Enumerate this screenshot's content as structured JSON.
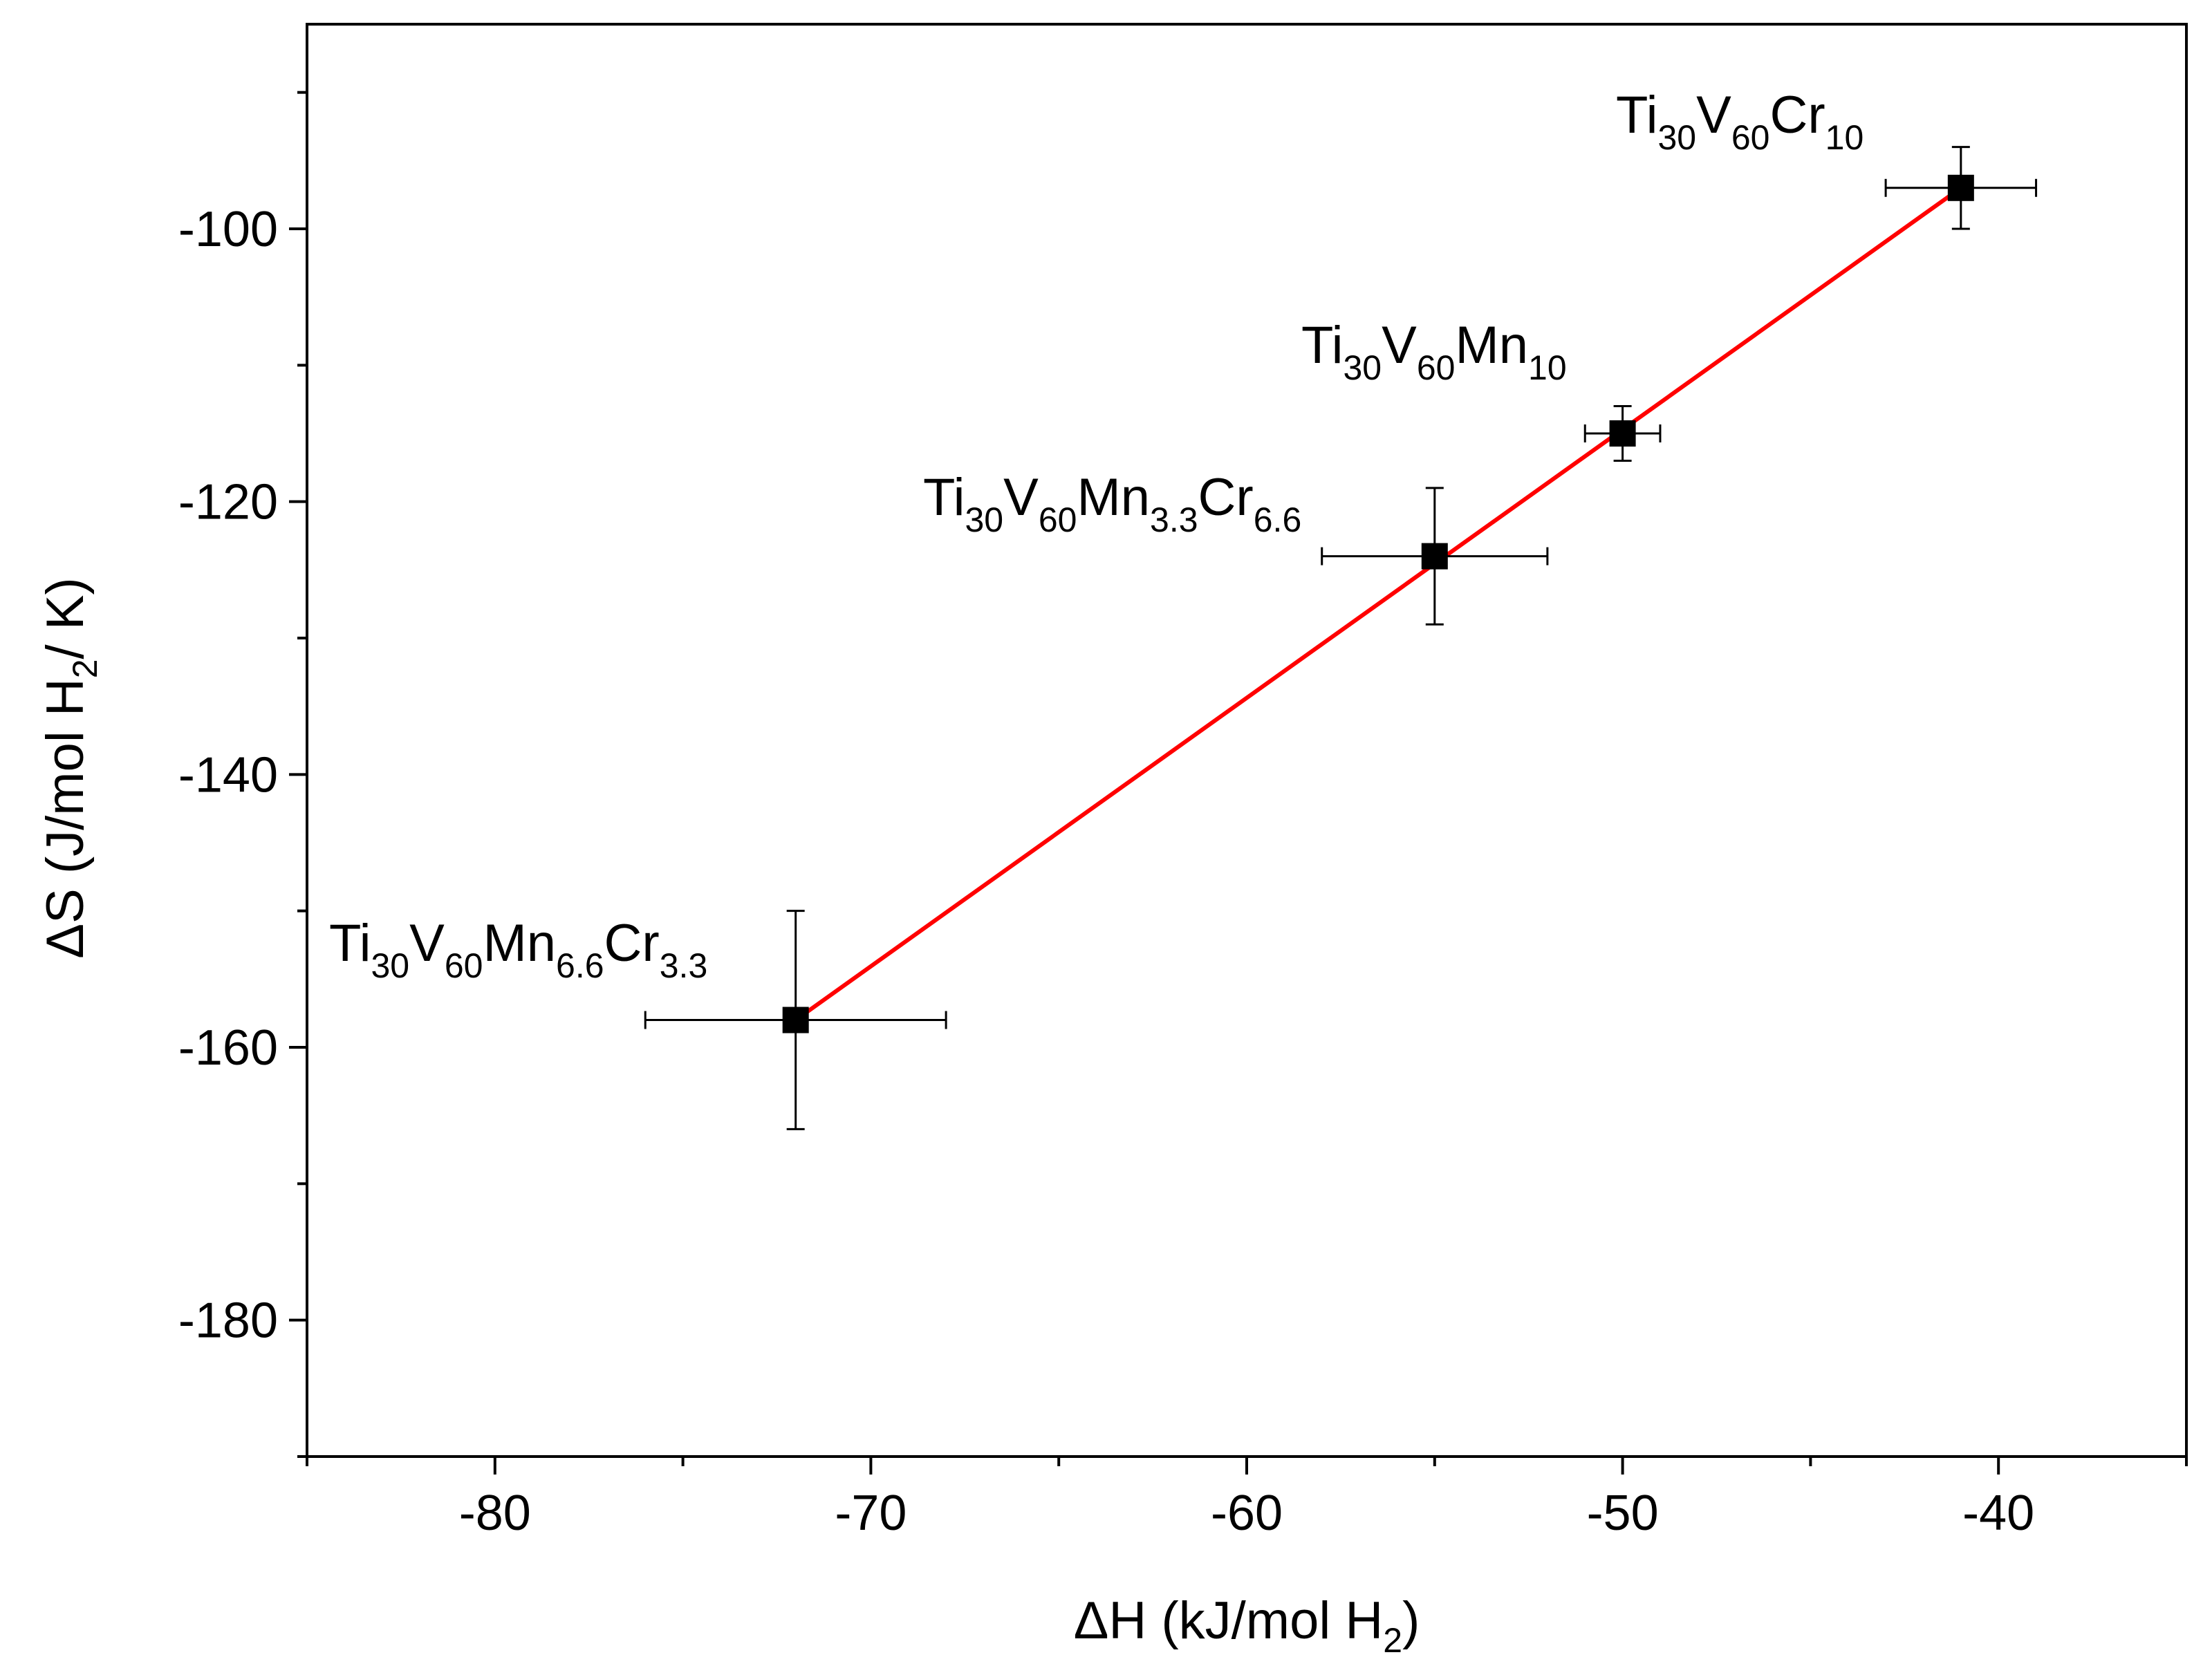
{
  "chart_data": {
    "type": "scatter",
    "xlabel": {
      "main": "ΔH (kJ/mol H",
      "sub": "2",
      "end": ")"
    },
    "ylabel": {
      "main": "ΔS (J/mol H",
      "sub": "2",
      "end": "/ K)"
    },
    "xlim": [
      -85,
      -35
    ],
    "ylim": [
      -190,
      -85
    ],
    "x_ticks": [
      -80,
      -70,
      -60,
      -50,
      -40
    ],
    "y_ticks": [
      -100,
      -120,
      -140,
      -160,
      -180
    ],
    "x_minor_step": 5,
    "y_minor_step": 10,
    "grid": false,
    "fit_line": {
      "color": "#ff0000",
      "from": [
        -72,
        -158
      ],
      "to": [
        -41,
        -97
      ]
    },
    "points": [
      {
        "x": -72,
        "y": -158,
        "xerr": 4,
        "yerr": 8,
        "label": [
          {
            "t": "Ti"
          },
          {
            "t": "30",
            "sub": true
          },
          {
            "t": "V"
          },
          {
            "t": "60",
            "sub": true
          },
          {
            "t": "Mn"
          },
          {
            "t": "6.6",
            "sub": true
          },
          {
            "t": "Cr"
          },
          {
            "t": "3.3",
            "sub": true
          }
        ]
      },
      {
        "x": -55,
        "y": -124,
        "xerr": 3,
        "yerr": 5,
        "label": [
          {
            "t": "Ti"
          },
          {
            "t": "30",
            "sub": true
          },
          {
            "t": "V"
          },
          {
            "t": "60",
            "sub": true
          },
          {
            "t": "Mn"
          },
          {
            "t": "3.3",
            "sub": true
          },
          {
            "t": "Cr"
          },
          {
            "t": "6.6",
            "sub": true
          }
        ]
      },
      {
        "x": -50,
        "y": -115,
        "xerr": 1,
        "yerr": 2,
        "label": [
          {
            "t": "Ti"
          },
          {
            "t": "30",
            "sub": true
          },
          {
            "t": "V"
          },
          {
            "t": "60",
            "sub": true
          },
          {
            "t": "Mn"
          },
          {
            "t": "10",
            "sub": true
          }
        ]
      },
      {
        "x": -41,
        "y": -97,
        "xerr": 2,
        "yerr": 3,
        "label": [
          {
            "t": "Ti"
          },
          {
            "t": "30",
            "sub": true
          },
          {
            "t": "V"
          },
          {
            "t": "60",
            "sub": true
          },
          {
            "t": "Cr"
          },
          {
            "t": "10",
            "sub": true
          }
        ]
      }
    ],
    "colors": {
      "marker": "#000000",
      "errorbar": "#000000",
      "fit": "#ff0000"
    }
  }
}
